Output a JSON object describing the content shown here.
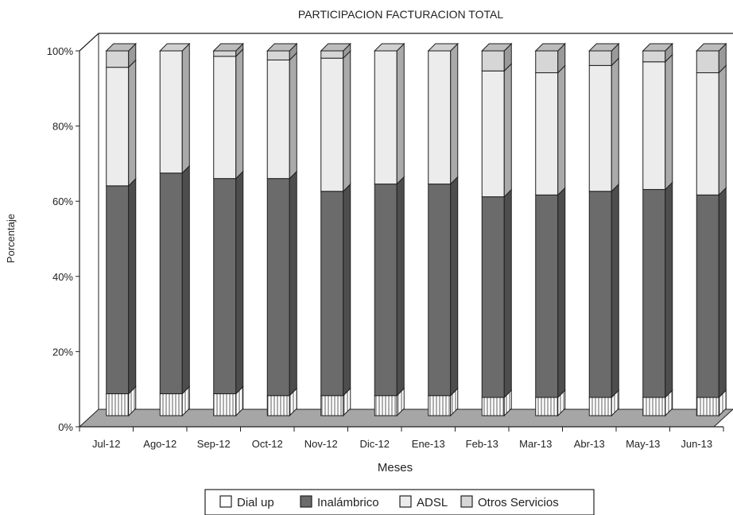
{
  "chart_data": {
    "type": "bar",
    "stacked": true,
    "title": "PARTICIPACION FACTURACION TOTAL",
    "xlabel": "Meses",
    "ylabel": "Porcentaje",
    "ylim": [
      0,
      100
    ],
    "yticks": [
      "0%",
      "20%",
      "40%",
      "60%",
      "80%",
      "100%"
    ],
    "categories": [
      "Jul-12",
      "Ago-12",
      "Sep-12",
      "Oct-12",
      "Nov-12",
      "Dic-12",
      "Ene-13",
      "Feb-13",
      "Mar-13",
      "Abr-13",
      "May-13",
      "Jun-13"
    ],
    "series": [
      {
        "name": "Dial up",
        "values": [
          6,
          6,
          6,
          5.5,
          5.5,
          5.5,
          5.5,
          5,
          5,
          5,
          5,
          5
        ]
      },
      {
        "name": "Inalámbrico",
        "values": [
          57,
          60.5,
          59,
          59.5,
          56,
          58,
          58,
          55,
          55.5,
          56.5,
          57,
          55.5
        ]
      },
      {
        "name": "ADSL",
        "values": [
          32.5,
          33.5,
          33.5,
          32.5,
          36.5,
          36.5,
          36.5,
          34.5,
          33.5,
          34.5,
          35,
          33.5
        ]
      },
      {
        "name": "Otros Servicios",
        "values": [
          4.5,
          0,
          1.5,
          2.5,
          2,
          0,
          0,
          5.5,
          6,
          4,
          3,
          6
        ]
      }
    ],
    "legend": {
      "position": "bottom",
      "border": true
    },
    "colors": {
      "Dial up": "#ffffff",
      "Inalámbrico": "#6b6b6b",
      "ADSL": "#ececec",
      "Otros Servicios": "#d6d6d6",
      "floor": "#a6a6a6",
      "outline": "#1e1e1e"
    }
  }
}
